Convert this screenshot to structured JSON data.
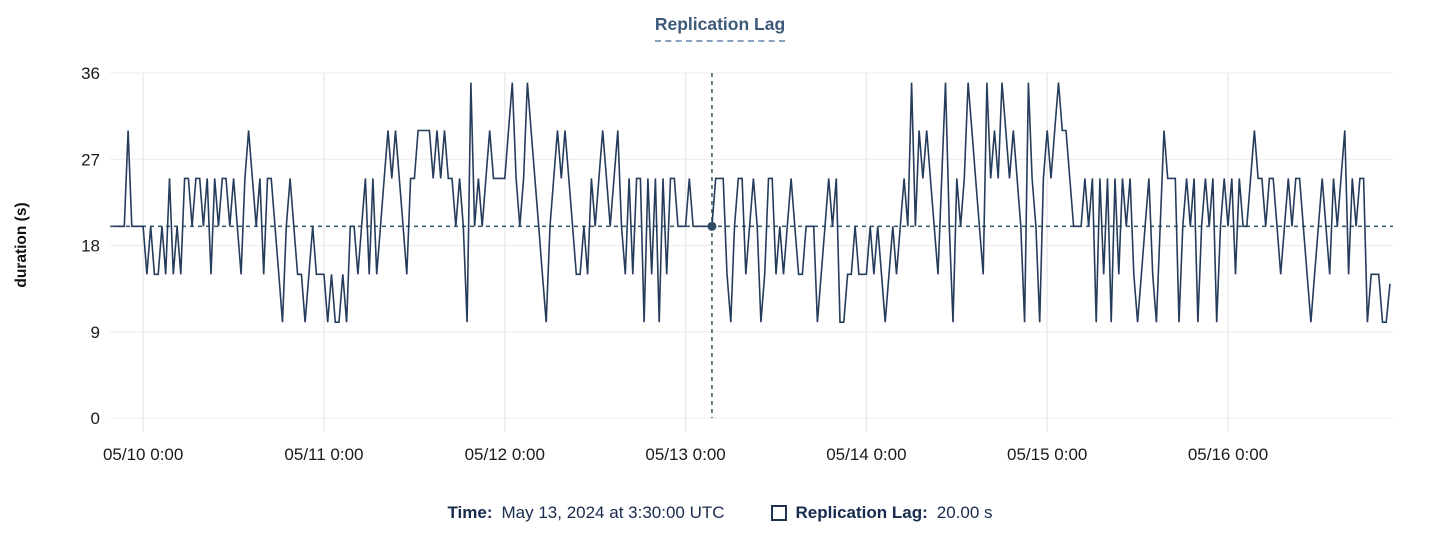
{
  "title": {
    "text": "Replication Lag"
  },
  "colors": {
    "line": "#263c5c",
    "crosshair": "#3c5f74",
    "marker": "#2f4d68",
    "title": "#3d5a78",
    "title_underline": "#8aa0bc",
    "legend_text": "#172b4d",
    "axis_text": "#1a1a1a",
    "grid": "#ececec"
  },
  "y_axis": {
    "label": "duration (s)",
    "ticks": [
      "0",
      "9",
      "18",
      "27",
      "36"
    ]
  },
  "x_axis": {
    "ticks": [
      "05/10 0:00",
      "05/11 0:00",
      "05/12 0:00",
      "05/13 0:00",
      "05/14 0:00",
      "05/15 0:00",
      "05/16 0:00"
    ]
  },
  "tooltip": {
    "time_label": "Time:",
    "time_value": "May 13, 2024 at 3:30:00 UTC",
    "series_label": "Replication Lag:",
    "series_value": "20.00 s"
  },
  "chart_data": {
    "type": "line",
    "title": "Replication Lag",
    "ylabel": "duration (s)",
    "ylim": [
      0,
      36
    ],
    "y_ticks": [
      0,
      9,
      18,
      27,
      36
    ],
    "x_tick_labels": [
      "05/10 0:00",
      "05/11 0:00",
      "05/12 0:00",
      "05/13 0:00",
      "05/14 0:00",
      "05/15 0:00",
      "05/16 0:00"
    ],
    "x_tick_hours": [
      0,
      24,
      48,
      72,
      96,
      120,
      144
    ],
    "x_domain_hours": [
      -4.4,
      165.9
    ],
    "grid": true,
    "legend_position": "bottom",
    "crosshair": {
      "hours": 75.5,
      "value": 20
    },
    "series": [
      {
        "name": "Replication Lag",
        "unit": "s",
        "start_hours": -4,
        "interval_hours": 0.5,
        "values": [
          20,
          20,
          20,
          20,
          30,
          20,
          20,
          20,
          20,
          15,
          20,
          15,
          15,
          20,
          15,
          25,
          15,
          20,
          15,
          25,
          25,
          20,
          25,
          25,
          20,
          25,
          15,
          25,
          20,
          25,
          25,
          20,
          25,
          20,
          15,
          25,
          30,
          25,
          20,
          25,
          15,
          25,
          25,
          20,
          15,
          10,
          20,
          25,
          20,
          15,
          15,
          10,
          15,
          20,
          15,
          15,
          15,
          10,
          15,
          10,
          10,
          15,
          10,
          20,
          20,
          15,
          20,
          25,
          15,
          25,
          15,
          20,
          25,
          30,
          25,
          30,
          25,
          20,
          15,
          25,
          25,
          30,
          30,
          30,
          30,
          25,
          30,
          25,
          30,
          25,
          25,
          20,
          25,
          20,
          10,
          35,
          20,
          25,
          20,
          25,
          30,
          25,
          25,
          25,
          25,
          30,
          35,
          25,
          20,
          25,
          35,
          30,
          25,
          20,
          15,
          10,
          20,
          25,
          30,
          25,
          30,
          25,
          20,
          15,
          15,
          20,
          15,
          25,
          20,
          25,
          30,
          25,
          20,
          25,
          30,
          20,
          15,
          25,
          15,
          25,
          25,
          10,
          25,
          15,
          25,
          10,
          25,
          15,
          25,
          25,
          20,
          20,
          20,
          25,
          20,
          20,
          20,
          20,
          20,
          20,
          25,
          25,
          25,
          15,
          10,
          20,
          25,
          25,
          15,
          20,
          25,
          20,
          10,
          15,
          25,
          25,
          15,
          20,
          15,
          20,
          25,
          20,
          15,
          15,
          20,
          20,
          20,
          10,
          15,
          20,
          25,
          20,
          25,
          10,
          10,
          15,
          15,
          20,
          15,
          15,
          15,
          20,
          15,
          20,
          15,
          10,
          15,
          20,
          15,
          20,
          25,
          20,
          35,
          20,
          30,
          25,
          30,
          25,
          20,
          15,
          25,
          35,
          20,
          10,
          25,
          20,
          25,
          35,
          30,
          25,
          20,
          15,
          35,
          25,
          30,
          25,
          35,
          30,
          25,
          30,
          25,
          20,
          10,
          35,
          25,
          20,
          10,
          25,
          30,
          25,
          30,
          35,
          30,
          30,
          25,
          20,
          20,
          20,
          25,
          20,
          25,
          10,
          25,
          15,
          25,
          10,
          25,
          15,
          25,
          20,
          25,
          15,
          10,
          15,
          20,
          25,
          15,
          10,
          20,
          30,
          25,
          25,
          25,
          10,
          20,
          25,
          20,
          25,
          10,
          20,
          25,
          20,
          25,
          10,
          20,
          25,
          20,
          25,
          15,
          25,
          20,
          20,
          25,
          30,
          25,
          25,
          20,
          25,
          25,
          20,
          15,
          20,
          25,
          20,
          25,
          25,
          20,
          15,
          10,
          15,
          20,
          25,
          20,
          15,
          25,
          20,
          25,
          30,
          15,
          25,
          20,
          25,
          25,
          10,
          15,
          15,
          15,
          10,
          10,
          14
        ]
      }
    ]
  }
}
